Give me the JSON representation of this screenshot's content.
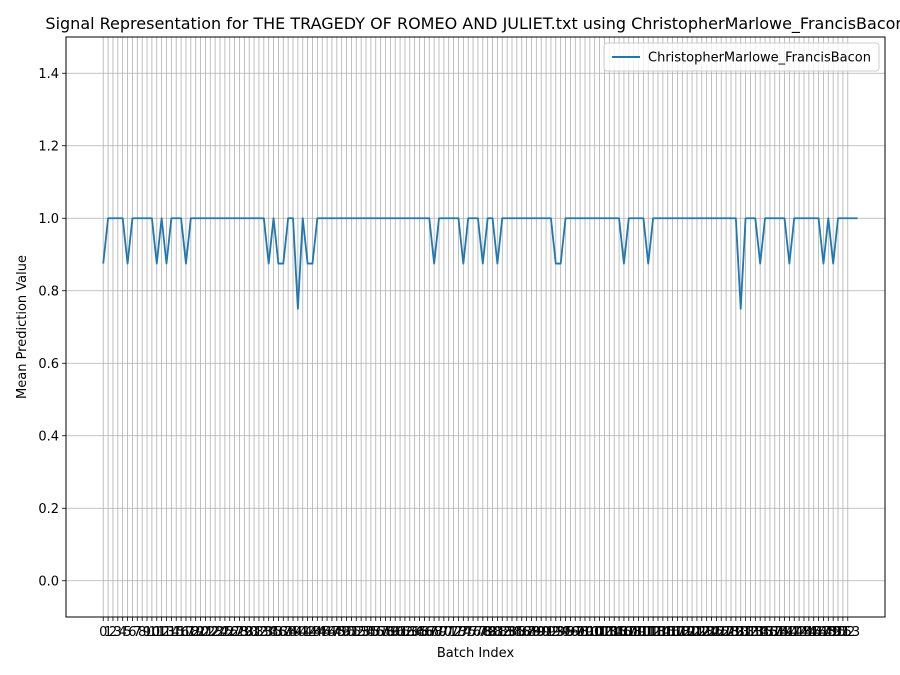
{
  "chart_data": {
    "type": "line",
    "title": "Signal Representation for THE TRAGEDY OF ROMEO AND JULIET.txt using ChristopherMarlowe_FrancisBacon",
    "xlabel": "Batch Index",
    "ylabel": "Mean Prediction Value",
    "xlim": [
      -7.65,
      160.65
    ],
    "ylim": [
      -0.1,
      1.5
    ],
    "yticks": [
      0.0,
      0.2,
      0.4,
      0.6,
      0.8,
      1.0,
      1.2,
      1.4
    ],
    "ytick_labels": [
      "0.0",
      "0.2",
      "0.4",
      "0.6",
      "0.8",
      "1.0",
      "1.2",
      "1.4"
    ],
    "x_tick_count": 154,
    "grid": true,
    "legend_position": "top-right",
    "series": [
      {
        "name": "ChristopherMarlowe_FrancisBacon",
        "color": "#1f77b4",
        "values": [
          0.875,
          1,
          1,
          1,
          1,
          0.875,
          1,
          1,
          1,
          1,
          1,
          0.875,
          1,
          0.875,
          1,
          1,
          1,
          0.875,
          1,
          1,
          1,
          1,
          1,
          1,
          1,
          1,
          1,
          1,
          1,
          1,
          1,
          1,
          1,
          1,
          0.875,
          1,
          0.875,
          0.875,
          1,
          1,
          0.75,
          1,
          0.875,
          0.875,
          1,
          1,
          1,
          1,
          1,
          1,
          1,
          1,
          1,
          1,
          1,
          1,
          1,
          1,
          1,
          1,
          1,
          1,
          1,
          1,
          1,
          1,
          1,
          1,
          0.875,
          1,
          1,
          1,
          1,
          1,
          0.875,
          1,
          1,
          1,
          0.875,
          1,
          1,
          0.875,
          1,
          1,
          1,
          1,
          1,
          1,
          1,
          1,
          1,
          1,
          1,
          0.875,
          0.875,
          1,
          1,
          1,
          1,
          1,
          1,
          1,
          1,
          1,
          1,
          1,
          1,
          0.875,
          1,
          1,
          1,
          1,
          0.875,
          1,
          1,
          1,
          1,
          1,
          1,
          1,
          1,
          1,
          1,
          1,
          1,
          1,
          1,
          1,
          1,
          1,
          1,
          0.75,
          1,
          1,
          1,
          0.875,
          1,
          1,
          1,
          1,
          1,
          0.875,
          1,
          1,
          1,
          1,
          1,
          1,
          0.875,
          1,
          0.875,
          1,
          1,
          1,
          1,
          1
        ]
      }
    ]
  }
}
